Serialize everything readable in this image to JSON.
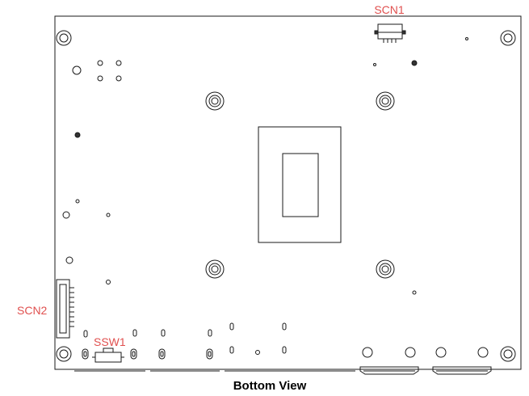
{
  "labels": {
    "scn1": "SCN1",
    "scn2": "SCN2",
    "ssw1": "SSW1"
  },
  "caption": "Bottom View",
  "colors": {
    "label": "#e0504f",
    "outline": "#1a1a1a",
    "background": "#ffffff"
  }
}
